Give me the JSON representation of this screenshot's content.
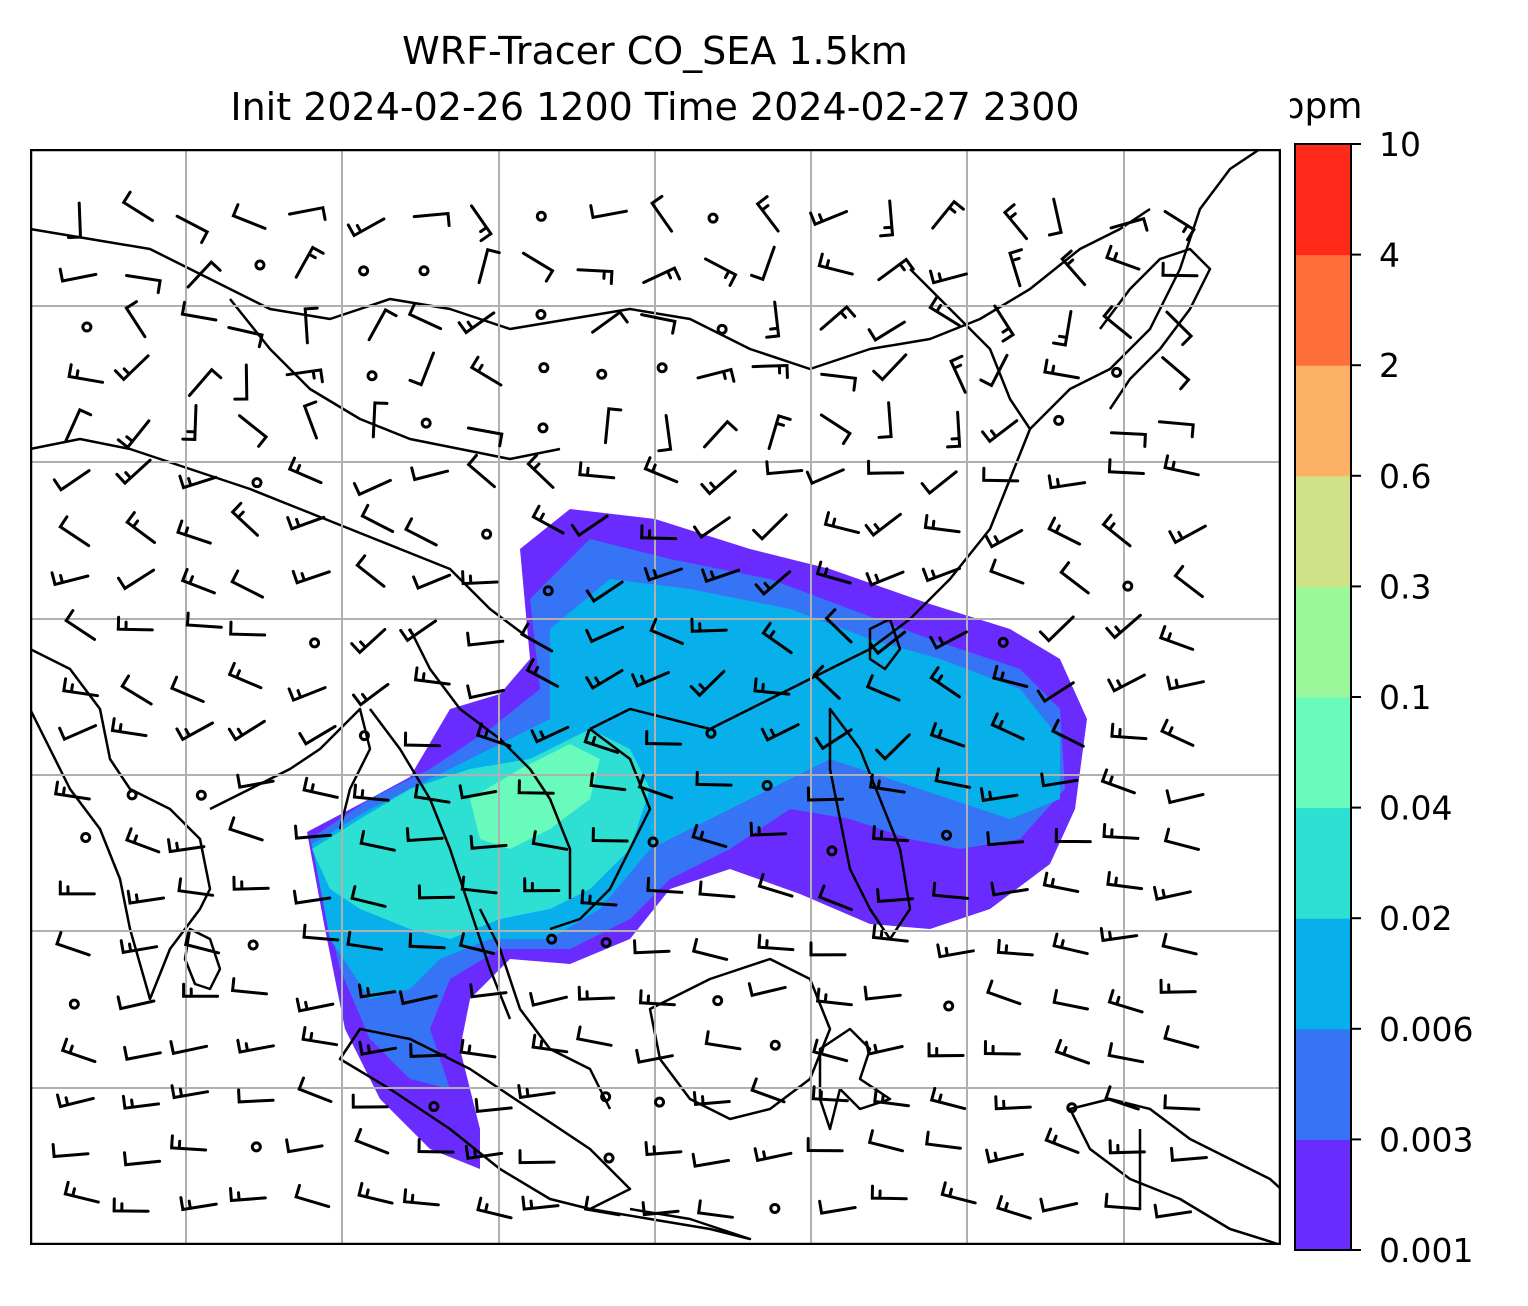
{
  "title": {
    "line1": "WRF-Tracer CO_SEA 1.5km",
    "line2": "Init 2024-02-26 1200 Time 2024-02-27 2300"
  },
  "colorbar": {
    "unit": "ppm",
    "levels": [
      "0.001",
      "0.003",
      "0.006",
      "0.02",
      "0.04",
      "0.1",
      "0.3",
      "0.6",
      "2",
      "4",
      "10"
    ],
    "colors": [
      "#6a2bff",
      "#3574f5",
      "#07b0ea",
      "#2ee0d4",
      "#68fbbb",
      "#9af89b",
      "#cfe287",
      "#fdb165",
      "#ff6f3a",
      "#ff2a1a"
    ]
  },
  "map": {
    "gridlines": 7,
    "plume_colors": [
      "#6a2bff",
      "#3574f5",
      "#07b0ea",
      "#2ee0d4",
      "#68fbbb"
    ],
    "layers": [
      "coastlines",
      "country-borders",
      "wind-barbs",
      "co-tracer-shading"
    ]
  }
}
